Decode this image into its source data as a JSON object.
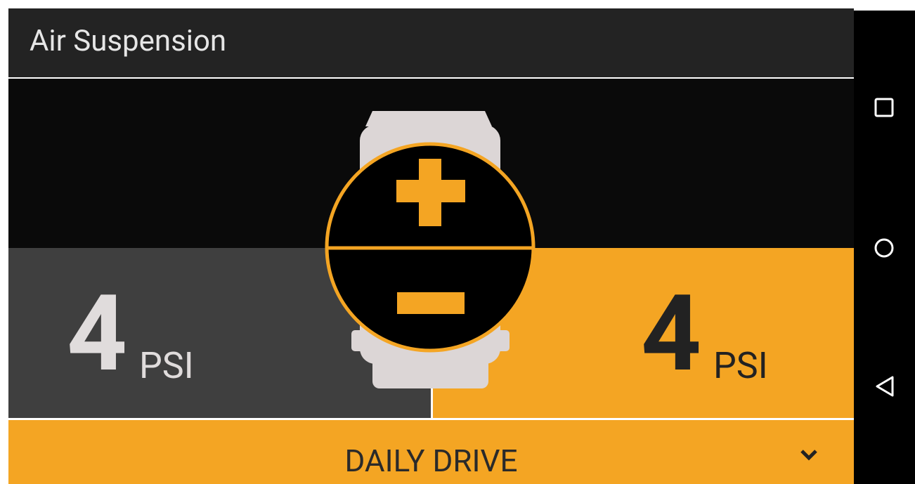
{
  "header": {
    "title": "Air Suspension"
  },
  "left": {
    "value": "4",
    "unit": "PSI"
  },
  "right": {
    "value": "4",
    "unit": "PSI"
  },
  "mode": {
    "label": "DAILY DRIVE"
  }
}
